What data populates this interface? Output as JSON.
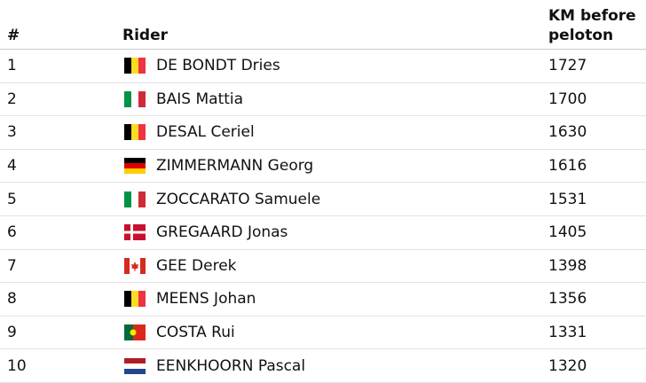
{
  "table": {
    "headers": [
      "#",
      "Rider",
      "KM before peloton"
    ],
    "rows": [
      [
        1,
        "DE BONDT Dries",
        1727
      ],
      [
        2,
        "BAIS Mattia",
        1700
      ],
      [
        3,
        "DESAL Ceriel",
        1630
      ],
      [
        4,
        "ZIMMERMANN Georg",
        1616
      ],
      [
        5,
        "ZOCCARATO Samuele",
        1531
      ],
      [
        6,
        "GREGAARD Jonas",
        1405
      ],
      [
        7,
        "GEE Derek",
        1398
      ],
      [
        8,
        "MEENS Johan",
        1356
      ],
      [
        9,
        "COSTA Rui",
        1331
      ],
      [
        10,
        "EENKHOORN Pascal",
        1320
      ]
    ]
  }
}
